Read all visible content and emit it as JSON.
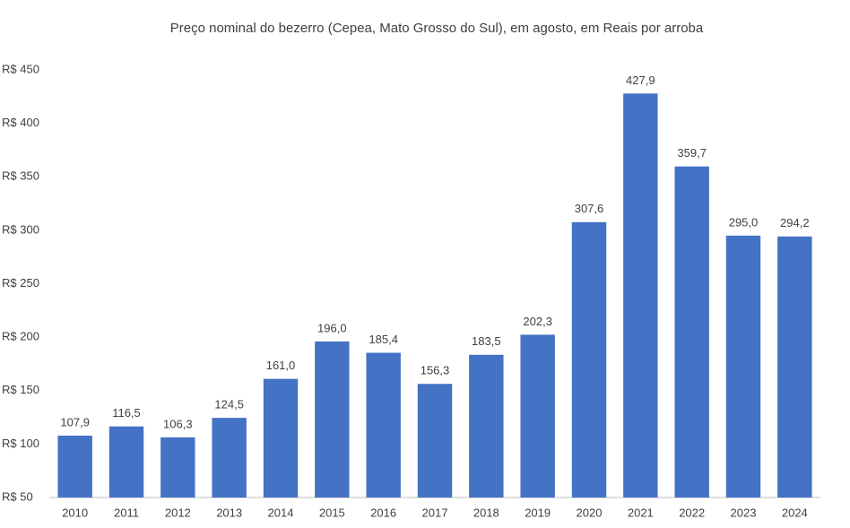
{
  "chart_data": {
    "type": "bar",
    "title": "Preço nominal do bezerro (Cepea, Mato Grosso do Sul), em agosto, em Reais por arroba",
    "categories": [
      "2010",
      "2011",
      "2012",
      "2013",
      "2014",
      "2015",
      "2016",
      "2017",
      "2018",
      "2019",
      "2020",
      "2021",
      "2022",
      "2023",
      "2024"
    ],
    "values": [
      107.9,
      116.5,
      106.3,
      124.5,
      161.0,
      196.0,
      185.4,
      156.3,
      183.5,
      202.3,
      307.6,
      427.9,
      359.7,
      295.0,
      294.2
    ],
    "value_labels": [
      "107,9",
      "116,5",
      "106,3",
      "124,5",
      "161,0",
      "196,0",
      "185,4",
      "156,3",
      "183,5",
      "202,3",
      "307,6",
      "427,9",
      "359,7",
      "295,0",
      "294,2"
    ],
    "color": "#4472c4",
    "ylim": [
      50,
      450
    ],
    "yticks": [
      {
        "value": 50,
        "label": "R$ 50"
      },
      {
        "value": 100,
        "label": "R$ 100"
      },
      {
        "value": 150,
        "label": "R$ 150"
      },
      {
        "value": 200,
        "label": "R$ 200"
      },
      {
        "value": 250,
        "label": "R$ 250"
      },
      {
        "value": 300,
        "label": "R$ 300"
      },
      {
        "value": 350,
        "label": "R$ 350"
      },
      {
        "value": 400,
        "label": "R$ 400"
      },
      {
        "value": 450,
        "label": "R$ 450"
      }
    ],
    "grid": false
  }
}
